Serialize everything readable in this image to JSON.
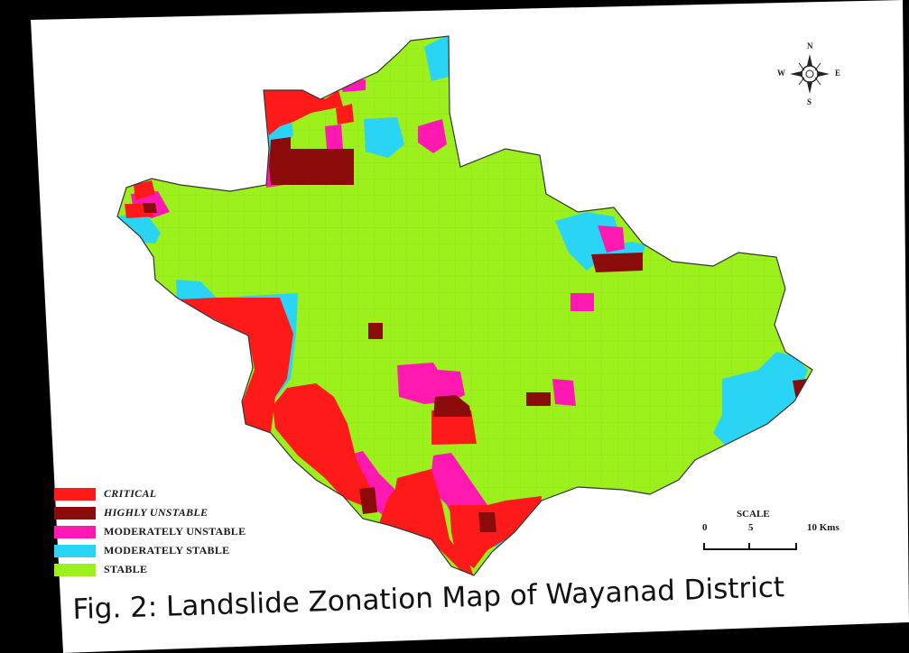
{
  "figure": {
    "caption": "Fig. 2:  Landslide Zonation Map of Wayanad District"
  },
  "legend": {
    "items": [
      {
        "label": "CRITICAL",
        "color": "#ff1a1a",
        "italic": true
      },
      {
        "label": "HIGHLY UNSTABLE",
        "color": "#8b0a0a",
        "italic": true
      },
      {
        "label": "MODERATELY UNSTABLE",
        "color": "#ff19b0",
        "italic": false
      },
      {
        "label": "MODERATELY STABLE",
        "color": "#2ad4f5",
        "italic": false
      },
      {
        "label": "STABLE",
        "color": "#9cf01c",
        "italic": false
      }
    ]
  },
  "compass": {
    "north": "N",
    "south": "S",
    "east": "E",
    "west": "W"
  },
  "scale": {
    "title": "SCALE",
    "ticks": [
      "0",
      "5",
      "10 Kms"
    ]
  },
  "colors": {
    "paper": "#ffffff",
    "background": "#000000",
    "stable": "#9cf01c",
    "critical": "#ff1a1a",
    "highly_unstable": "#8b0a0a",
    "moderately_unstable": "#ff19b0",
    "moderately_stable": "#2ad4f5",
    "boundary": "#333333"
  }
}
